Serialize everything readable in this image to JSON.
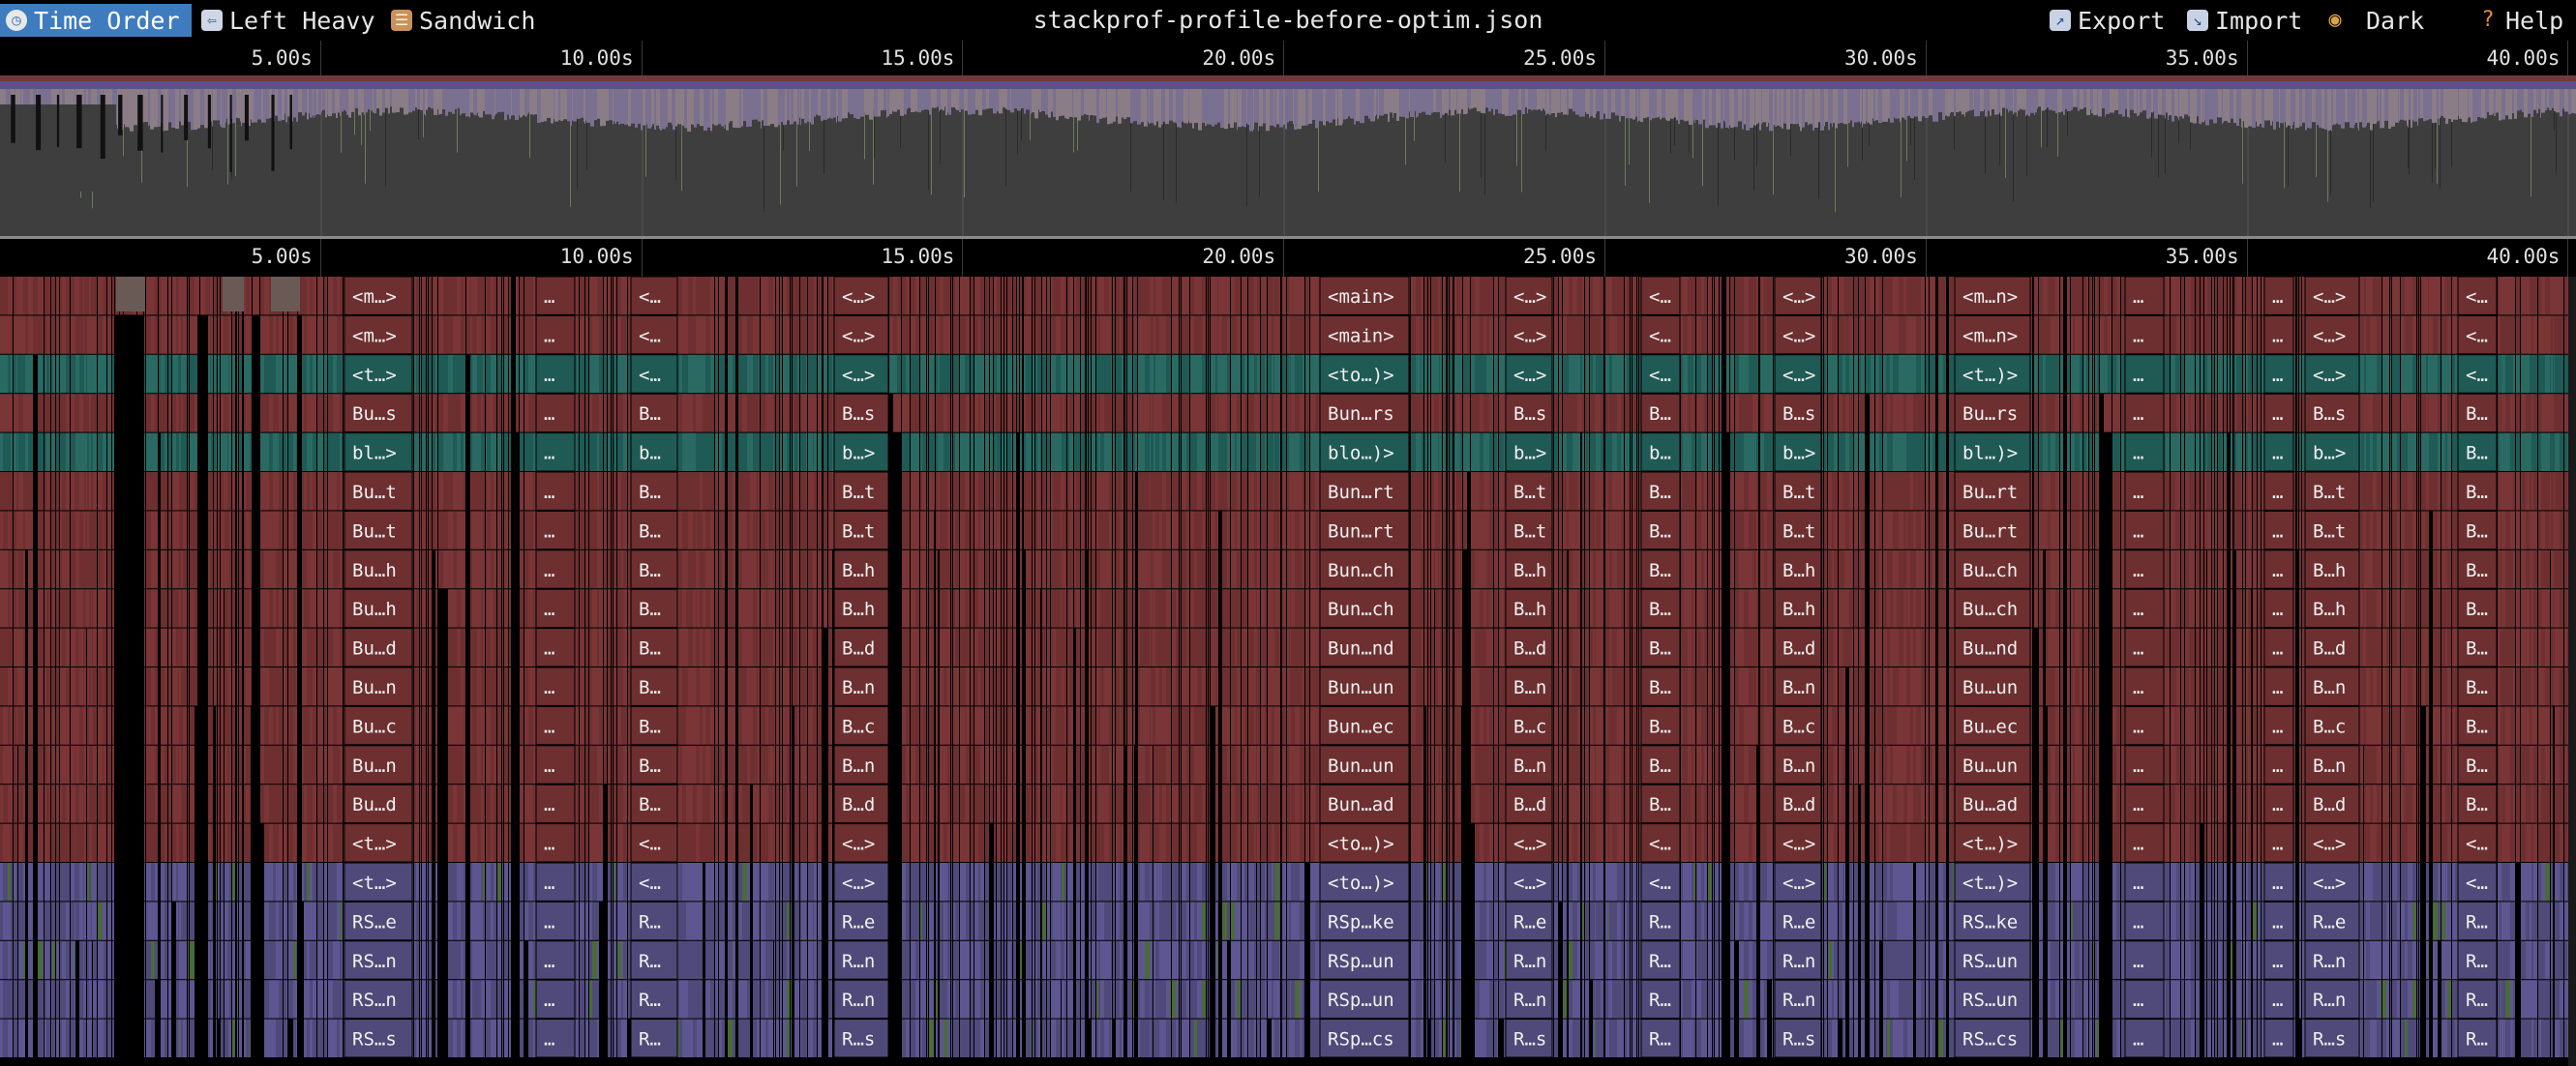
{
  "toolbar": {
    "buttons": [
      {
        "label": "Time Order",
        "icon": "clock-icon",
        "active": true
      },
      {
        "label": "Left Heavy",
        "icon": "arrow-left-icon",
        "active": false
      },
      {
        "label": "Sandwich",
        "icon": "sandwich-icon",
        "active": false
      }
    ],
    "title": "stackprof-profile-before-optim.json",
    "right_buttons": [
      {
        "label": "Export",
        "icon": "export-icon"
      },
      {
        "label": "Import",
        "icon": "import-icon"
      },
      {
        "label": "Dark",
        "icon": "palette-icon"
      },
      {
        "label": "Help",
        "icon": "question-icon"
      }
    ]
  },
  "axis": {
    "ticks": [
      "5.00s",
      "10.00s",
      "15.00s",
      "20.00s",
      "25.00s",
      "30.00s",
      "35.00s",
      "40.00s"
    ]
  },
  "flame": {
    "columns": [
      {
        "labels": [
          "<m…>",
          "<m…>",
          "<t…>",
          "Bu…s",
          "bl…>",
          "Bu…t",
          "Bu…t",
          "Bu…h",
          "Bu…h",
          "Bu…d",
          "Bu…n",
          "Bu…c",
          "Bu…n",
          "Bu…d",
          "<t…>",
          "<t…>",
          "RS…e",
          "RS…n",
          "RS…n",
          "RS…s"
        ]
      },
      {
        "labels": [
          "…",
          "…",
          "…",
          "…",
          "…",
          "…",
          "…",
          "…",
          "…",
          "…",
          "…",
          "…",
          "…",
          "…",
          "…",
          "…",
          "…",
          "…",
          "…",
          "…"
        ]
      },
      {
        "labels": [
          "<…",
          "<…",
          "<…",
          "B…",
          "b…",
          "B…",
          "B…",
          "B…",
          "B…",
          "B…",
          "B…",
          "B…",
          "B…",
          "B…",
          "<…",
          "<…",
          "R…",
          "R…",
          "R…",
          "R…"
        ]
      },
      {
        "labels": [
          "<…>",
          "<…>",
          "<…>",
          "B…s",
          "b…>",
          "B…t",
          "B…t",
          "B…h",
          "B…h",
          "B…d",
          "B…n",
          "B…c",
          "B…n",
          "B…d",
          "<…>",
          "<…>",
          "R…e",
          "R…n",
          "R…n",
          "R…s"
        ]
      },
      {
        "labels": [
          "<main>",
          "<main>",
          "<to…)>",
          "Bun…rs",
          "blo…)>",
          "Bun…rt",
          "Bun…rt",
          "Bun…ch",
          "Bun…ch",
          "Bun…nd",
          "Bun…un",
          "Bun…ec",
          "Bun…un",
          "Bun…ad",
          "<to…)>",
          "<to…)>",
          "RSp…ke",
          "RSp…un",
          "RSp…un",
          "RSp…cs"
        ]
      },
      {
        "labels": [
          "<…>",
          "<…>",
          "<…>",
          "B…s",
          "b…>",
          "B…t",
          "B…t",
          "B…h",
          "B…h",
          "B…d",
          "B…n",
          "B…c",
          "B…n",
          "B…d",
          "<…>",
          "<…>",
          "R…e",
          "R…n",
          "R…n",
          "R…s"
        ]
      },
      {
        "labels": [
          "<…",
          "<…",
          "<…",
          "B…",
          "b…",
          "B…",
          "B…",
          "B…",
          "B…",
          "B…",
          "B…",
          "B…",
          "B…",
          "B…",
          "<…",
          "<…",
          "R…",
          "R…",
          "R…",
          "R…"
        ]
      },
      {
        "labels": [
          "<…>",
          "<…>",
          "<…>",
          "B…s",
          "b…>",
          "B…t",
          "B…t",
          "B…h",
          "B…h",
          "B…d",
          "B…n",
          "B…c",
          "B…n",
          "B…d",
          "<…>",
          "<…>",
          "R…e",
          "R…n",
          "R…n",
          "R…s"
        ]
      },
      {
        "labels": [
          "<m…n>",
          "<m…n>",
          "<t…)>",
          "Bu…rs",
          "bl…)>",
          "Bu…rt",
          "Bu…rt",
          "Bu…ch",
          "Bu…ch",
          "Bu…nd",
          "Bu…un",
          "Bu…ec",
          "Bu…un",
          "Bu…ad",
          "<t…)>",
          "<t…)>",
          "RS…ke",
          "RS…un",
          "RS…un",
          "RS…cs"
        ]
      },
      {
        "labels": [
          "…",
          "…",
          "…",
          "…",
          "…",
          "…",
          "…",
          "…",
          "…",
          "…",
          "…",
          "…",
          "…",
          "…",
          "…",
          "…",
          "…",
          "…",
          "…",
          "…"
        ]
      },
      {
        "labels": [
          "…",
          "…",
          "…",
          "…",
          "…",
          "…",
          "…",
          "…",
          "…",
          "…",
          "…",
          "…",
          "…",
          "…",
          "…",
          "…",
          "…",
          "…",
          "…",
          "…"
        ]
      },
      {
        "labels": [
          "<…>",
          "<…>",
          "<…>",
          "B…s",
          "b…>",
          "B…t",
          "B…t",
          "B…h",
          "B…h",
          "B…d",
          "B…n",
          "B…c",
          "B…n",
          "B…d",
          "<…>",
          "<…>",
          "R…e",
          "R…n",
          "R…n",
          "R…s"
        ]
      },
      {
        "labels": [
          "<…",
          "<…",
          "<…",
          "B…",
          "B…",
          "B…",
          "B…",
          "B…",
          "B…",
          "B…",
          "B…",
          "B…",
          "B…",
          "B…",
          "<…",
          "<…",
          "R…",
          "R…",
          "R…",
          "R…"
        ]
      }
    ],
    "colors": {
      "red": "#6e2f30",
      "teal": "#1f5a55",
      "purple": "#4f4a79",
      "black": "#000000"
    }
  }
}
